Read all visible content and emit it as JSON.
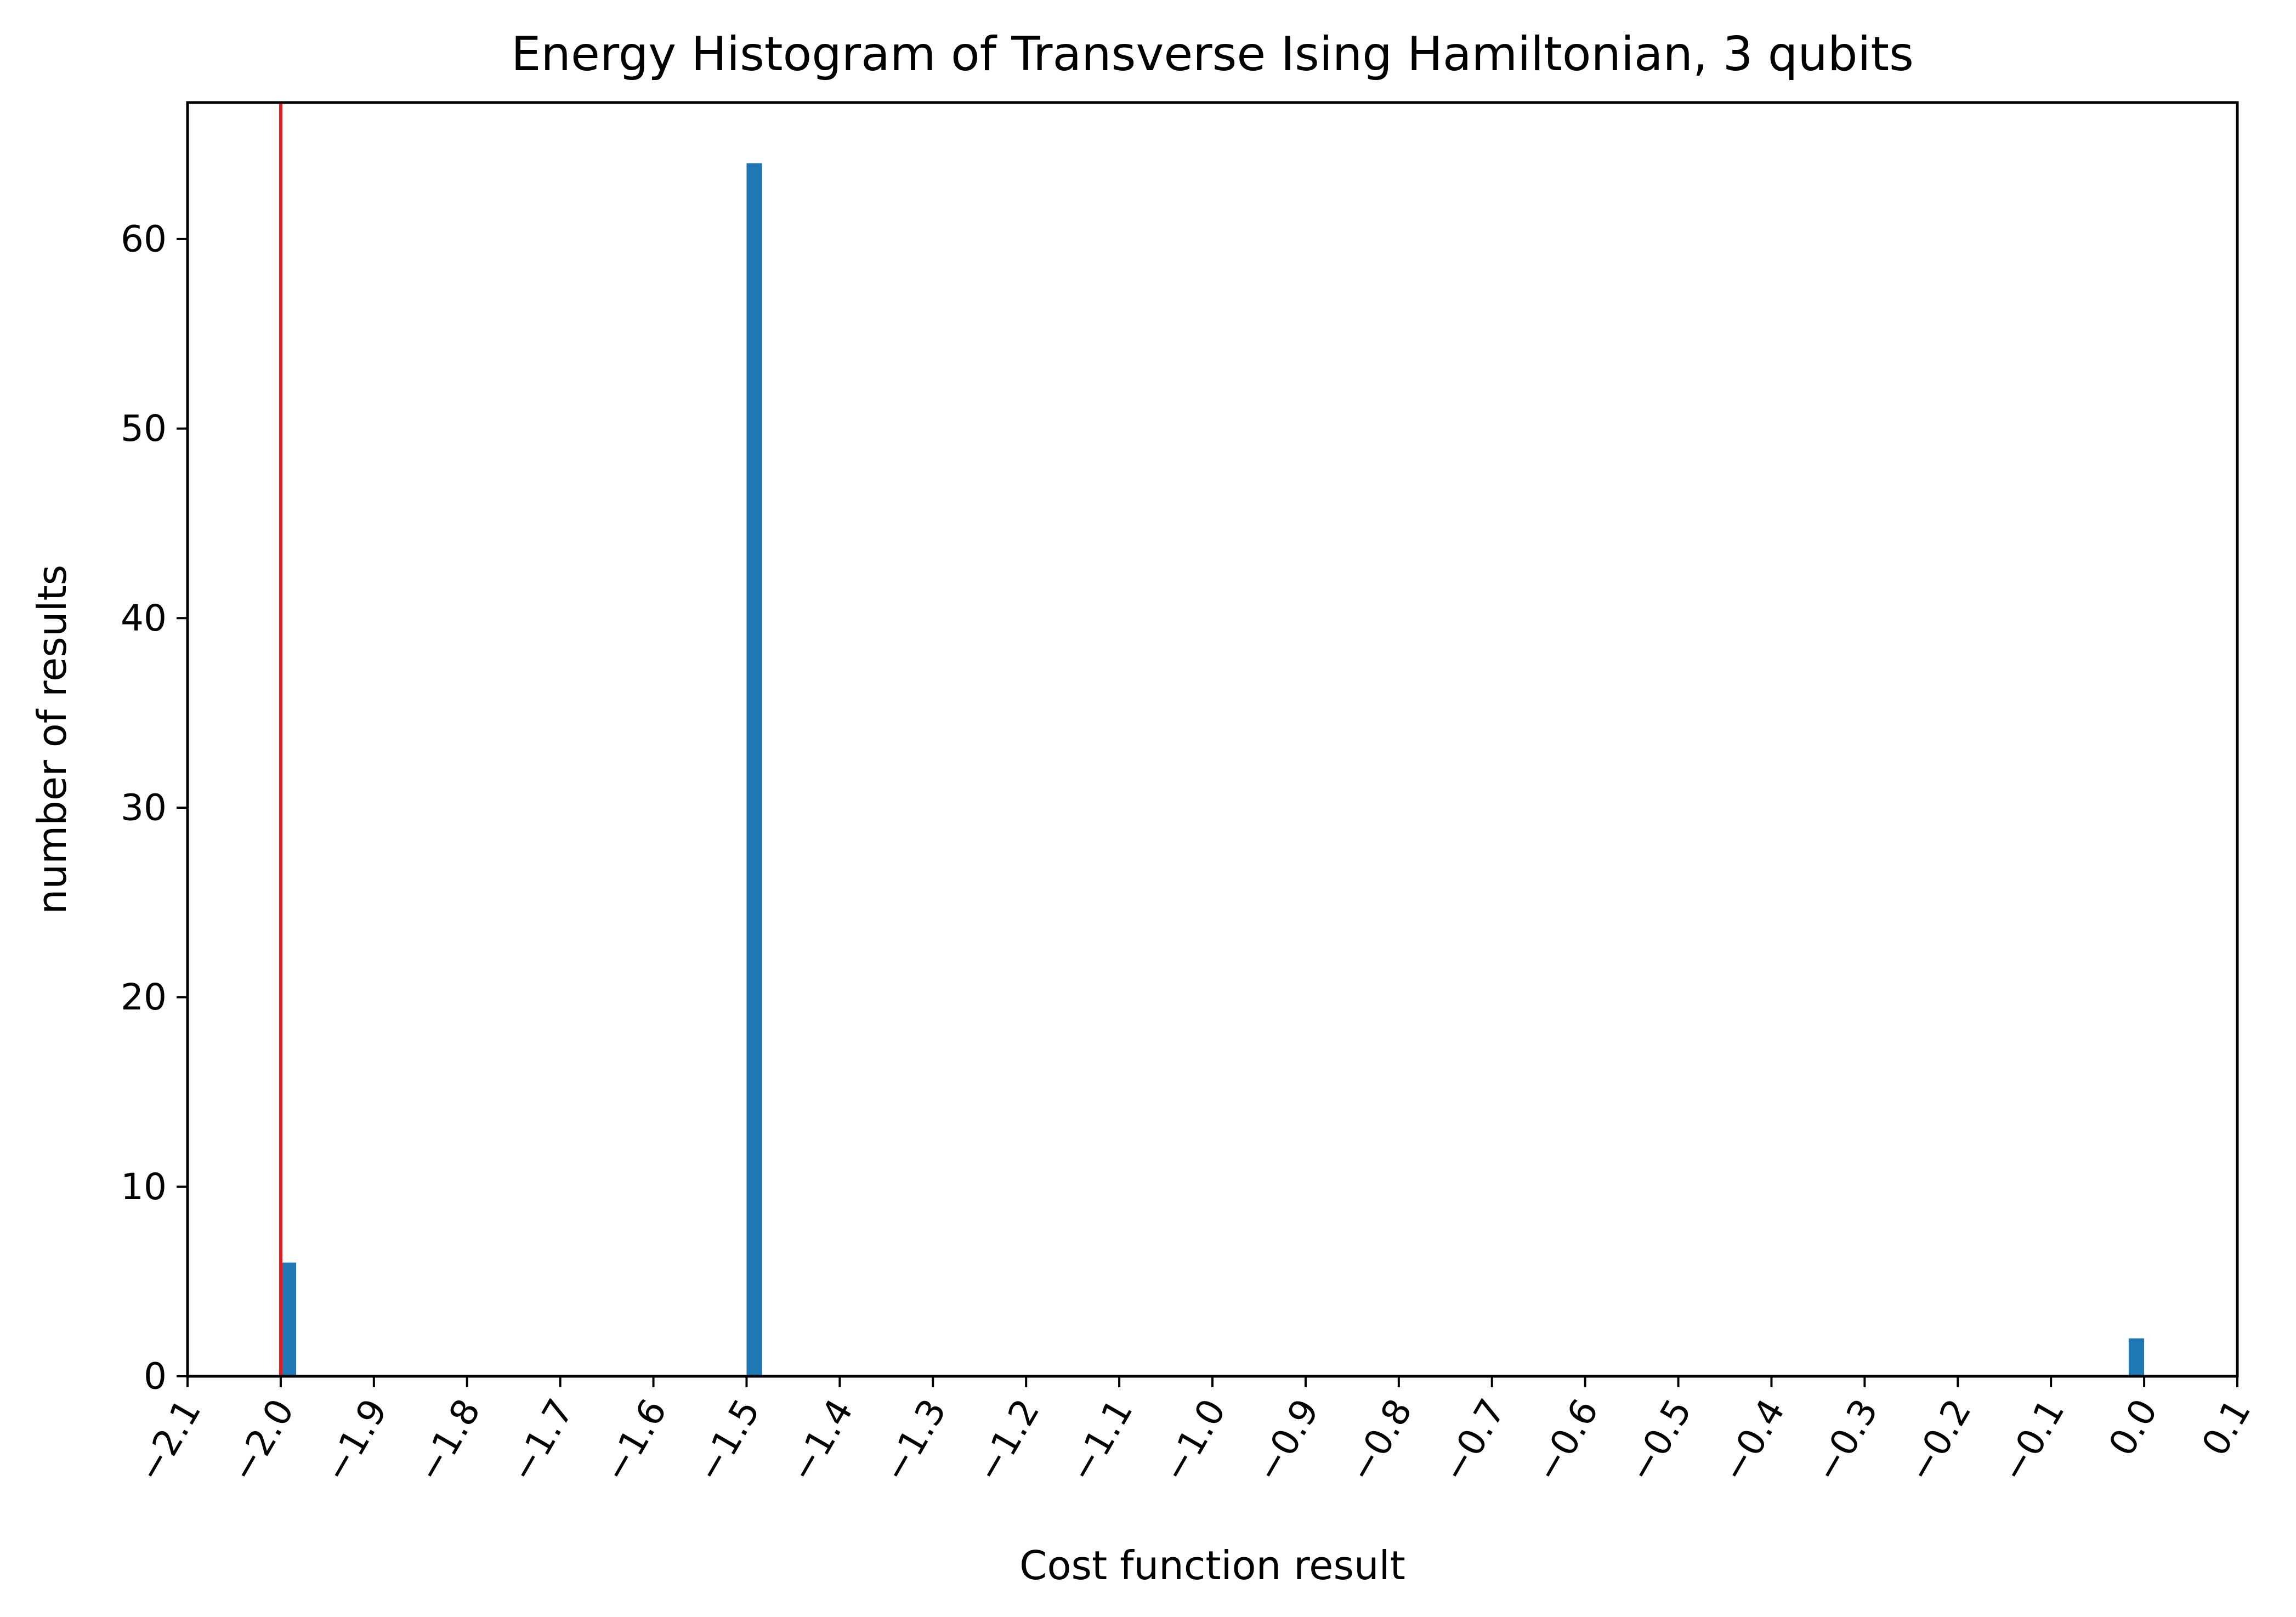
{
  "chart_data": {
    "type": "bar",
    "title": "Energy Histogram of Transverse Ising Hamiltonian, 3 qubits",
    "xlabel": "Cost function result",
    "ylabel": "number of results",
    "xlim": [
      -2.1,
      0.1
    ],
    "ylim": [
      0,
      67.2
    ],
    "bar_width": 0.0166,
    "bar_color": "#1f77b4",
    "x_ticks": [
      "−2.1",
      "−2.0",
      "−1.9",
      "−1.8",
      "−1.7",
      "−1.6",
      "−1.5",
      "−1.4",
      "−1.3",
      "−1.2",
      "−1.1",
      "−1.0",
      "−0.9",
      "−0.8",
      "−0.7",
      "−0.6",
      "−0.5",
      "−0.4",
      "−0.3",
      "−0.2",
      "−0.1",
      "0.0",
      "0.1"
    ],
    "x_tick_values": [
      -2.1,
      -2.0,
      -1.9,
      -1.8,
      -1.7,
      -1.6,
      -1.5,
      -1.4,
      -1.3,
      -1.2,
      -1.1,
      -1.0,
      -0.9,
      -0.8,
      -0.7,
      -0.6,
      -0.5,
      -0.4,
      -0.3,
      -0.2,
      -0.1,
      0.0,
      0.1
    ],
    "y_ticks": [
      "0",
      "10",
      "20",
      "30",
      "40",
      "50",
      "60"
    ],
    "y_tick_values": [
      0,
      10,
      20,
      30,
      40,
      50,
      60
    ],
    "bars": [
      {
        "x_start": -2.0,
        "value": 6
      },
      {
        "x_start": -1.5,
        "value": 64
      },
      {
        "x_start": -0.0166,
        "value": 2
      }
    ],
    "reference_line": {
      "x": -2.0,
      "color": "#e41a1c"
    },
    "grid": false,
    "legend": "none"
  }
}
